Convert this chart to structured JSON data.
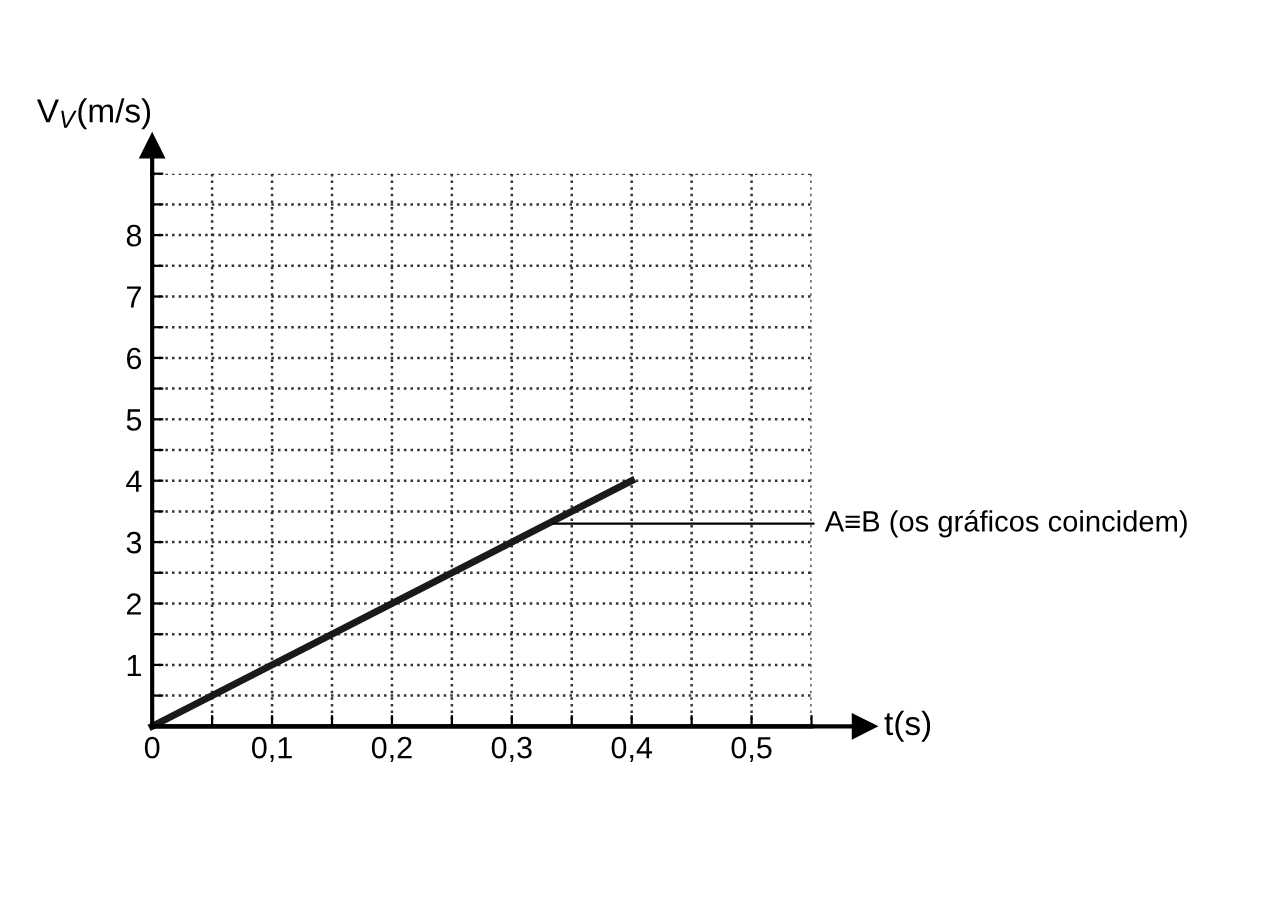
{
  "chart_data": {
    "type": "line",
    "xlabel": "t(s)",
    "ylabel": "V$_{V}$(m/s)",
    "x": [
      0,
      0.4
    ],
    "series": [
      {
        "color": "#1a1a1a",
        "values": [
          0,
          4
        ]
      }
    ],
    "xlim": [
      0,
      0.55
    ],
    "ylim": [
      0,
      9
    ],
    "xticks": [
      {
        "value": 0,
        "label": "0"
      },
      {
        "value": 0.05,
        "label": null
      },
      {
        "value": 0.1,
        "label": "0,1"
      },
      {
        "value": 0.15,
        "label": null
      },
      {
        "value": 0.2,
        "label": "0,2"
      },
      {
        "value": 0.25,
        "label": null
      },
      {
        "value": 0.3,
        "label": "0,3"
      },
      {
        "value": 0.35,
        "label": null
      },
      {
        "value": 0.4,
        "label": "0,4"
      },
      {
        "value": 0.45,
        "label": null
      },
      {
        "value": 0.5,
        "label": "0,5"
      },
      {
        "value": 0.55,
        "label": null
      }
    ],
    "yticks": [
      {
        "value": 0.5,
        "label": null
      },
      1,
      {
        "value": 1.5,
        "label": null
      },
      2,
      {
        "value": 2.5,
        "label": null
      },
      3,
      {
        "value": 3.5,
        "label": null
      },
      4,
      {
        "value": 4.5,
        "label": null
      },
      5,
      {
        "value": 5.5,
        "label": null
      },
      6,
      {
        "value": 6.5,
        "label": null
      },
      7,
      {
        "value": 7.5,
        "label": null
      },
      8,
      {
        "value": 8.5,
        "label": null
      },
      {
        "value": 9,
        "label": null
      }
    ],
    "grid": true,
    "line_style": "solid",
    "annotations": [
      {
        "text": "A≡B (os gráficos coincidem)",
        "x": 0.33,
        "y": 3.3
      }
    ]
  }
}
